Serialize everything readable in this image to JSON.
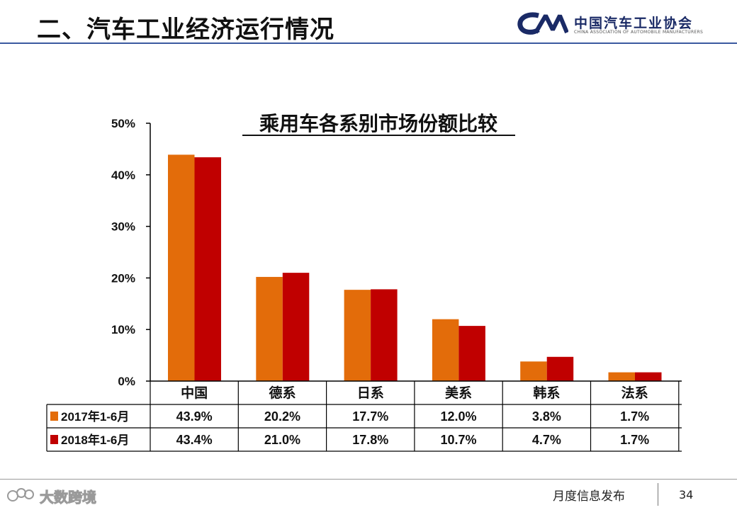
{
  "header": {
    "title": "二、汽车工业经济运行情况",
    "logo_name": "中国汽车工业协会",
    "logo_subtitle": "CHINA ASSOCIATION OF AUTOMOBILE MANUFACTURERS",
    "logo_mark": "CAAM"
  },
  "chart_data": {
    "type": "bar",
    "title": "乘用车各系别市场份额比较",
    "categories": [
      "中国",
      "德系",
      "日系",
      "美系",
      "韩系",
      "法系"
    ],
    "series": [
      {
        "name": "2017年1-6月",
        "color": "#E36C0A",
        "values": [
          43.9,
          20.2,
          17.7,
          12.0,
          3.8,
          1.7
        ],
        "labels": [
          "43.9%",
          "20.2%",
          "17.7%",
          "12.0%",
          "3.8%",
          "1.7%"
        ]
      },
      {
        "name": "2018年1-6月",
        "color": "#C00000",
        "values": [
          43.4,
          21.0,
          17.8,
          10.7,
          4.7,
          1.7
        ],
        "labels": [
          "43.4%",
          "21.0%",
          "17.8%",
          "10.7%",
          "4.7%",
          "1.7%"
        ]
      }
    ],
    "ylim": [
      0,
      50
    ],
    "yticks": [
      0,
      10,
      20,
      30,
      40,
      50
    ],
    "ytick_labels": [
      "0%",
      "10%",
      "20%",
      "30%",
      "40%",
      "50%"
    ],
    "xlabel": "",
    "ylabel": "",
    "grid": false,
    "legend": "data-table"
  },
  "footer": {
    "text": "月度信息发布",
    "page_number": "34",
    "watermark": "大数跨境",
    "watermark_icon_name": "bubble-logo-icon"
  }
}
